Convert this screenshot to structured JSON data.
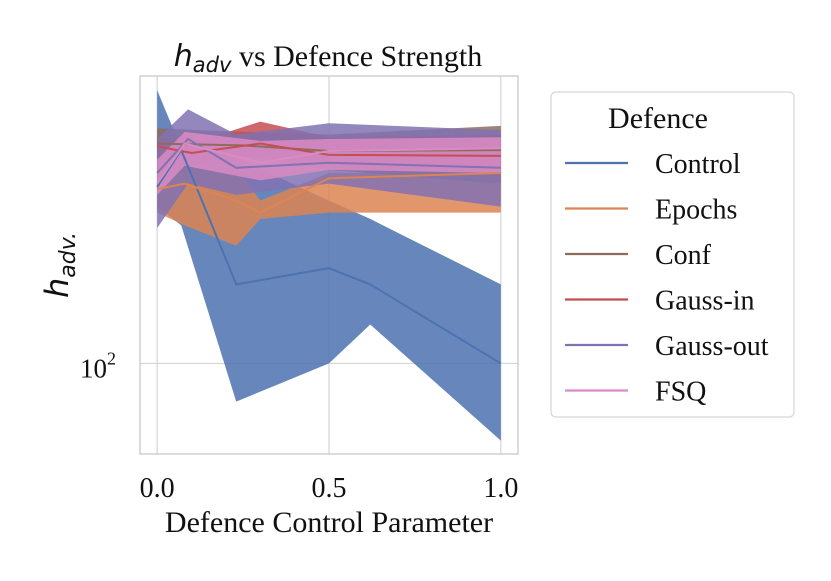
{
  "chart_data": {
    "type": "line",
    "title": {
      "math": "h",
      "math_sub": "adv",
      "rest": " vs Defence Strength"
    },
    "xlabel": "Defence Control Parameter",
    "ylabel": {
      "math": "h",
      "math_sub": "adv."
    },
    "xlim": [
      -0.05,
      1.05
    ],
    "ylim": [
      68,
      340
    ],
    "yscale": "log",
    "xticks": [
      {
        "value": 0.0,
        "label": "0.0"
      },
      {
        "value": 0.5,
        "label": "0.5"
      },
      {
        "value": 1.0,
        "label": "1.0"
      }
    ],
    "yticks": [
      {
        "value": 100,
        "base": "10",
        "exp": "2"
      }
    ],
    "grid": true,
    "legend": {
      "title": "Defence",
      "placement": "right"
    },
    "series": [
      {
        "name": "Control",
        "color": "#4C72B0",
        "x": [
          0.0,
          0.07,
          0.23,
          0.5,
          0.62,
          1.0
        ],
        "y": [
          212,
          248,
          140,
          150,
          140,
          100
        ],
        "lower": [
          195,
          180,
          85,
          100,
          118,
          72
        ],
        "upper": [
          320,
          250,
          240,
          200,
          185,
          140
        ]
      },
      {
        "name": "Epochs",
        "color": "#DD8452",
        "x": [
          0.0,
          0.08,
          0.23,
          0.3,
          0.5,
          1.0
        ],
        "y": [
          210,
          215,
          200,
          190,
          220,
          225
        ],
        "lower": [
          190,
          180,
          165,
          185,
          190,
          190
        ],
        "upper": [
          225,
          230,
          230,
          200,
          225,
          225
        ]
      },
      {
        "name": "Conf",
        "color": "#8C6D5B",
        "x": [
          0.0,
          0.25,
          0.5,
          1.0
        ],
        "y": [
          255,
          253,
          247,
          248
        ],
        "lower": [
          238,
          242,
          228,
          215
        ],
        "upper": [
          272,
          268,
          265,
          275
        ]
      },
      {
        "name": "Gauss-in",
        "color": "#C44E52",
        "x": [
          0.0,
          0.1,
          0.3,
          0.5,
          1.0
        ],
        "y": [
          252,
          245,
          255,
          243,
          242
        ],
        "lower": [
          240,
          235,
          242,
          230,
          228
        ],
        "upper": [
          262,
          255,
          280,
          262,
          265
        ]
      },
      {
        "name": "Gauss-out",
        "color": "#8172B3",
        "x": [
          0.0,
          0.09,
          0.23,
          0.5,
          1.0
        ],
        "y": [
          225,
          260,
          230,
          235,
          230
        ],
        "lower": [
          178,
          215,
          205,
          215,
          195
        ],
        "upper": [
          260,
          295,
          265,
          278,
          270
        ]
      },
      {
        "name": "FSQ",
        "color": "#DA8BC3",
        "x": [
          0.0,
          0.08,
          0.3,
          0.5,
          1.0
        ],
        "y": [
          215,
          255,
          235,
          247,
          250
        ],
        "lower": [
          205,
          232,
          218,
          228,
          225
        ],
        "upper": [
          238,
          268,
          258,
          260,
          262
        ]
      }
    ]
  }
}
